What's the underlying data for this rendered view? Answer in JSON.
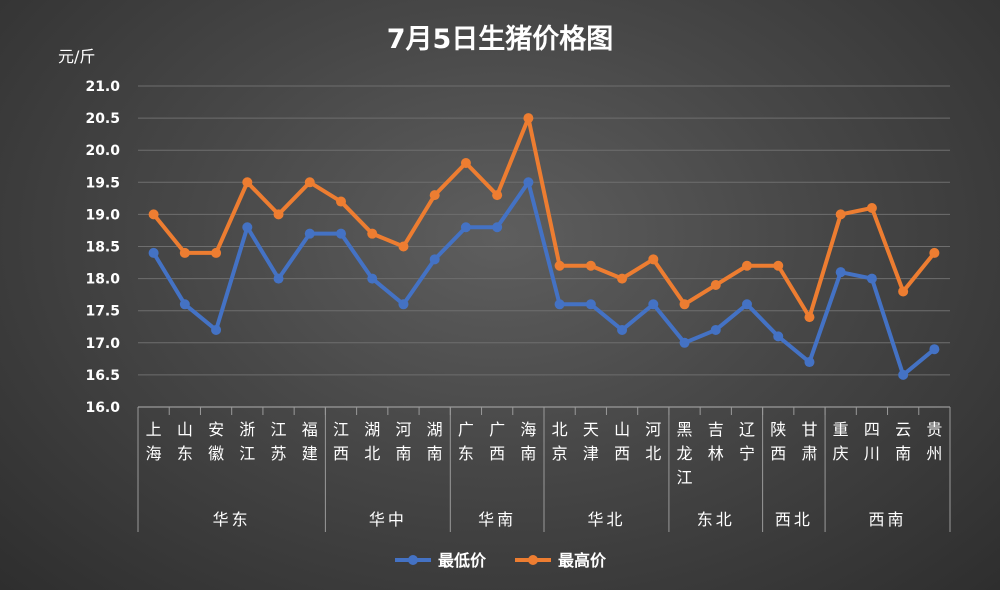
{
  "chart_data": {
    "type": "line",
    "title": "7月5日生猪价格图",
    "ylabel": "元/斤",
    "xlabel": "",
    "ylim": [
      16.0,
      21.0
    ],
    "yticks": [
      "16.0",
      "16.5",
      "17.0",
      "17.5",
      "18.0",
      "18.5",
      "19.0",
      "19.5",
      "20.0",
      "20.5",
      "21.0"
    ],
    "categories": [
      "上海",
      "山东",
      "安徽",
      "浙江",
      "江苏",
      "福建",
      "江西",
      "湖北",
      "河南",
      "湖南",
      "广东",
      "广西",
      "海南",
      "北京",
      "天津",
      "山西",
      "河北",
      "黑龙江",
      "吉林",
      "辽宁",
      "陕西",
      "甘肃",
      "重庆",
      "四川",
      "云南",
      "贵州"
    ],
    "groups": [
      {
        "name": "华东",
        "count": 6
      },
      {
        "name": "华中",
        "count": 4
      },
      {
        "name": "华南",
        "count": 3
      },
      {
        "name": "华北",
        "count": 4
      },
      {
        "name": "东北",
        "count": 3
      },
      {
        "name": "西北",
        "count": 2
      },
      {
        "name": "西南",
        "count": 4
      }
    ],
    "series": [
      {
        "name": "最低价",
        "color": "#4472c4",
        "values": [
          18.4,
          17.6,
          17.2,
          18.8,
          18.0,
          18.7,
          18.7,
          18.0,
          17.6,
          18.3,
          18.8,
          18.8,
          19.5,
          17.6,
          17.6,
          17.2,
          17.6,
          17.0,
          17.2,
          17.6,
          17.1,
          16.7,
          18.1,
          18.0,
          16.5,
          16.9
        ]
      },
      {
        "name": "最高价",
        "color": "#ed7d31",
        "values": [
          19.0,
          18.4,
          18.4,
          19.5,
          19.0,
          19.5,
          19.2,
          18.7,
          18.5,
          19.3,
          19.8,
          19.3,
          20.5,
          18.2,
          18.2,
          18.0,
          18.3,
          17.6,
          17.9,
          18.2,
          18.2,
          17.4,
          19.0,
          19.1,
          17.8,
          18.4
        ]
      }
    ],
    "grid": true,
    "legend": "bottom"
  }
}
